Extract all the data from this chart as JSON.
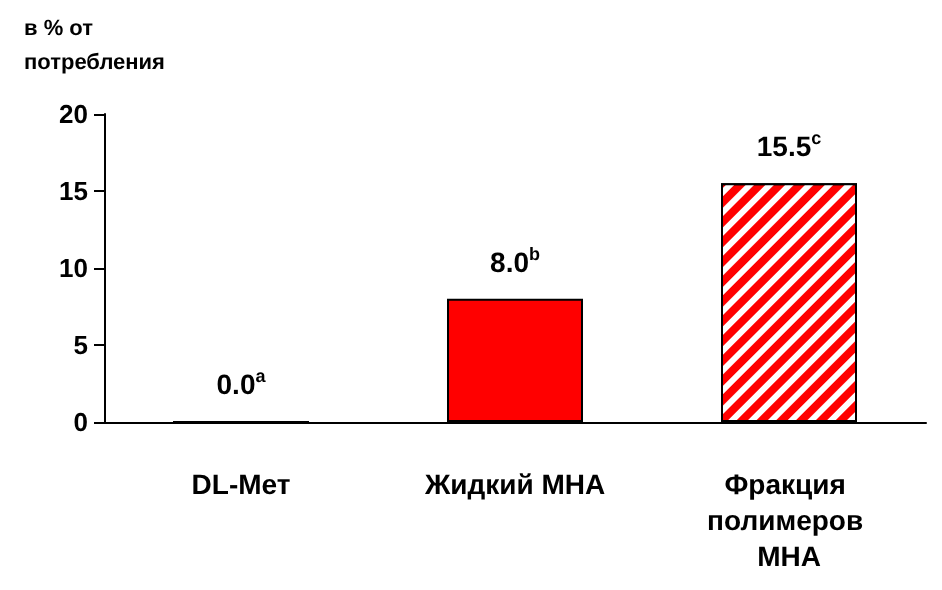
{
  "chart_data": {
    "type": "bar",
    "ylabel": "в % от потребления",
    "categories": [
      "DL-Мет",
      "Жидкий MHA",
      "Фракция полимеров MHA"
    ],
    "values": [
      0.0,
      8.0,
      15.5
    ],
    "colors": [
      "#ff0000",
      "#ff0000",
      "#ff0000"
    ],
    "value_labels": [
      "0.0$^{a}$",
      "8.0$^{b}$",
      "15.5$^{c}$"
    ],
    "ylim": [
      0,
      20
    ],
    "yticks": [
      0,
      5,
      10,
      15,
      20
    ],
    "grid": false
  }
}
